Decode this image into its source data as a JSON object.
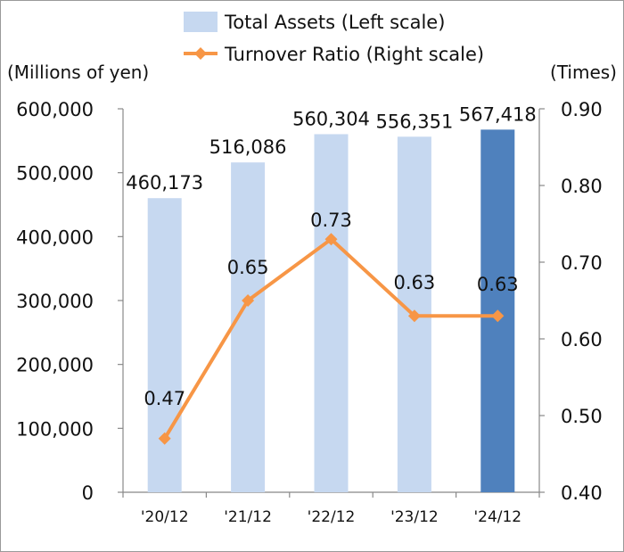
{
  "chart_data": {
    "type": "bar+line",
    "categories": [
      "'20/12",
      "'21/12",
      "'22/12",
      "'23/12",
      "'24/12"
    ],
    "series": [
      {
        "name": "Total Assets (Left scale)",
        "type": "bar",
        "axis": "left",
        "values": [
          460173,
          516086,
          560304,
          556351,
          567418
        ],
        "labels": [
          "460,173",
          "516,086",
          "560,304",
          "556,351",
          "567,418"
        ],
        "color": "#c6d8f0",
        "highlight_color": "#4f81bd",
        "highlight_index": 4
      },
      {
        "name": "Turnover Ratio (Right scale)",
        "type": "line",
        "axis": "right",
        "values": [
          0.47,
          0.65,
          0.73,
          0.63,
          0.63
        ],
        "labels": [
          "0.47",
          "0.65",
          "0.73",
          "0.63",
          "0.63"
        ],
        "color": "#f79646"
      }
    ],
    "y_left": {
      "unit": "(Millions of yen)",
      "range": [
        0,
        600000
      ],
      "ticks": [
        0,
        100000,
        200000,
        300000,
        400000,
        500000,
        600000
      ],
      "tick_labels": [
        "0",
        "100,000",
        "200,000",
        "300,000",
        "400,000",
        "500,000",
        "600,000"
      ]
    },
    "y_right": {
      "unit": "(Times)",
      "range": [
        0.4,
        0.9
      ],
      "ticks": [
        0.4,
        0.5,
        0.6,
        0.7,
        0.8,
        0.9
      ],
      "tick_labels": [
        "0.40",
        "0.50",
        "0.60",
        "0.70",
        "0.80",
        "0.90"
      ]
    },
    "grid": false,
    "legend_position": "top"
  }
}
